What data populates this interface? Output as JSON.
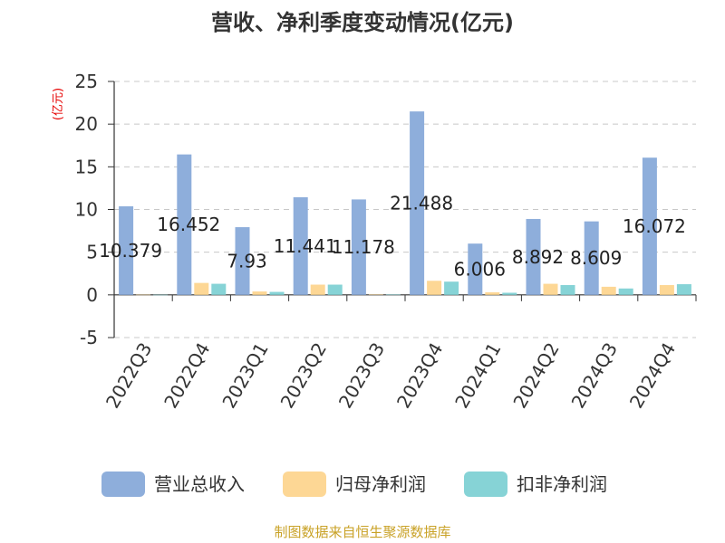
{
  "chart_data": {
    "type": "bar",
    "title": "营收、净利季度变动情况(亿元)",
    "ylabel": "(亿元)",
    "categories": [
      "2022Q3",
      "2022Q4",
      "2023Q1",
      "2023Q2",
      "2023Q3",
      "2023Q4",
      "2024Q1",
      "2024Q2",
      "2024Q3",
      "2024Q4"
    ],
    "series": [
      {
        "name": "营业总收入",
        "color": "#8eaedb",
        "values": [
          10.379,
          16.452,
          7.93,
          11.441,
          11.178,
          21.488,
          6.006,
          8.892,
          8.609,
          16.072
        ]
      },
      {
        "name": "归母净利润",
        "color": "#fdd795",
        "values": [
          0.02,
          1.4,
          0.4,
          1.2,
          0.05,
          1.65,
          0.3,
          1.3,
          0.95,
          1.15
        ]
      },
      {
        "name": "扣非净利润",
        "color": "#86d3d6",
        "values": [
          0.01,
          1.3,
          0.35,
          1.2,
          0.03,
          1.55,
          0.25,
          1.15,
          0.75,
          1.25
        ]
      }
    ],
    "data_labels": [
      "10.379",
      "16.452",
      "7.93",
      "11.441",
      "11.178",
      "21.488",
      "6.006",
      "8.892",
      "8.609",
      "16.072"
    ],
    "y_ticks": [
      "25",
      "20",
      "15",
      "10",
      "5",
      "0",
      "-5"
    ],
    "ylim": [
      -5,
      25
    ],
    "grid": true,
    "legend_position": "bottom"
  },
  "source": "制图数据来自恒生聚源数据库"
}
